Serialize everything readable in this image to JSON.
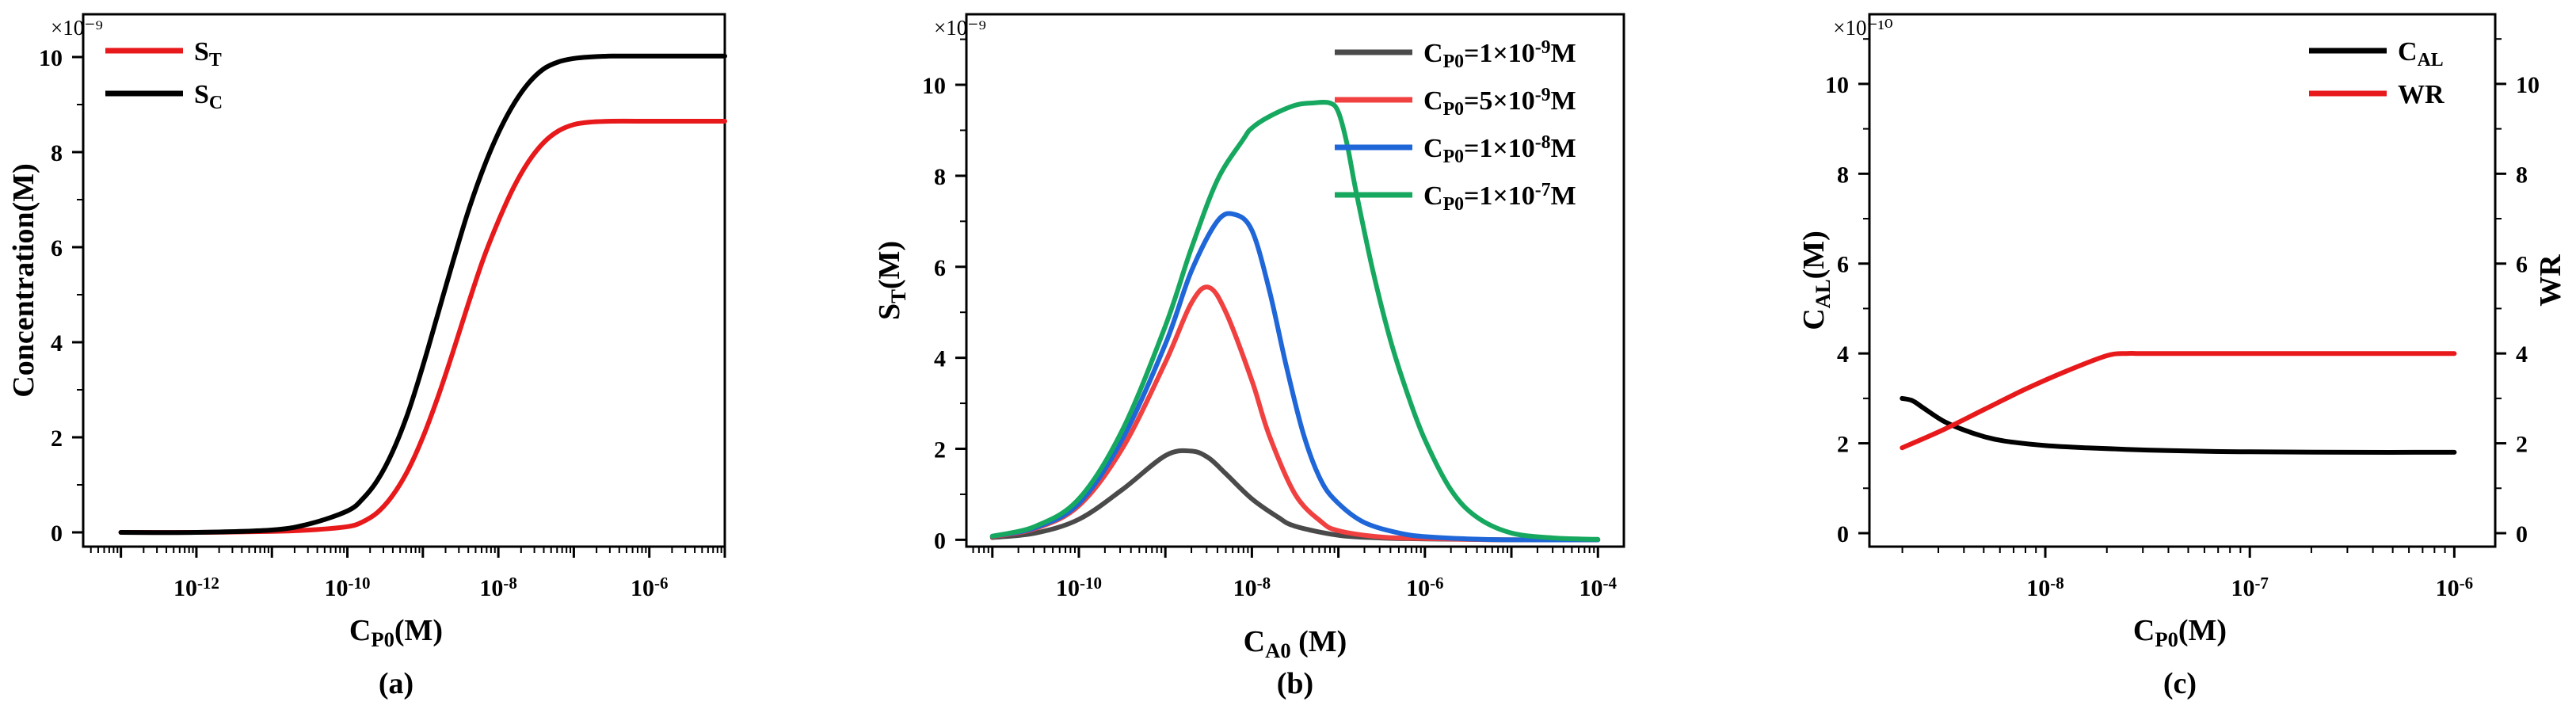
{
  "chart_data": [
    {
      "id": "a",
      "type": "line",
      "caption": "(a)",
      "xscale": "log",
      "xlim_log10": [
        -13.5,
        -5
      ],
      "ylim": [
        -0.3,
        10.9
      ],
      "multiplier": "×10⁻⁹",
      "xlabel": {
        "main": "C",
        "sub": "P0",
        "rest": "(M)"
      },
      "ylabel": {
        "main": "Concentration(M)",
        "sub": "",
        "rest": ""
      },
      "xticks": [
        {
          "exp": -12,
          "label": "10",
          "sup": "-12"
        },
        {
          "exp": -10,
          "label": "10",
          "sup": "-10"
        },
        {
          "exp": -8,
          "label": "10",
          "sup": "-8"
        },
        {
          "exp": -6,
          "label": "10",
          "sup": "-6"
        }
      ],
      "yticks": [
        0,
        2,
        4,
        6,
        8,
        10
      ],
      "legend_position": "top-left",
      "series": [
        {
          "name": "S",
          "sub": "T",
          "color": "#e8191b",
          "log_x": [
            -13,
            -12,
            -11,
            -10.5,
            -10,
            -9.8,
            -9.6,
            -9.4,
            -9.2,
            -9,
            -8.8,
            -8.6,
            -8.4,
            -8.2,
            -8,
            -7.8,
            -7.6,
            -7.4,
            -7.2,
            -7,
            -6.8,
            -6.5,
            -6,
            -5.5,
            -5
          ],
          "y": [
            0,
            0,
            0.02,
            0.05,
            0.12,
            0.22,
            0.42,
            0.78,
            1.3,
            2.0,
            2.85,
            3.8,
            4.8,
            5.75,
            6.55,
            7.25,
            7.8,
            8.2,
            8.45,
            8.58,
            8.63,
            8.65,
            8.65,
            8.65,
            8.65
          ]
        },
        {
          "name": "S",
          "sub": "C",
          "color": "#000000",
          "log_x": [
            -13,
            -12,
            -11,
            -10.5,
            -10,
            -9.8,
            -9.6,
            -9.4,
            -9.2,
            -9,
            -8.8,
            -8.6,
            -8.4,
            -8.2,
            -8,
            -7.8,
            -7.6,
            -7.4,
            -7.2,
            -7,
            -6.8,
            -6.5,
            -6,
            -5.5,
            -5
          ],
          "y": [
            0,
            0,
            0.05,
            0.18,
            0.45,
            0.7,
            1.1,
            1.7,
            2.5,
            3.5,
            4.6,
            5.7,
            6.75,
            7.65,
            8.4,
            9.0,
            9.45,
            9.75,
            9.9,
            9.97,
            10.0,
            10.02,
            10.02,
            10.02,
            10.02
          ]
        }
      ]
    },
    {
      "id": "b",
      "type": "line",
      "caption": "(b)",
      "xscale": "log",
      "xlim_log10": [
        -11.3,
        -3.7
      ],
      "ylim": [
        -0.15,
        11.55
      ],
      "multiplier": "×10⁻⁹",
      "xlabel": {
        "main": "C",
        "sub": "A0",
        "rest": " (M)"
      },
      "ylabel": {
        "main": "S",
        "sub": "T",
        "rest": "(M)"
      },
      "xticks": [
        {
          "exp": -10,
          "label": "10",
          "sup": "-10"
        },
        {
          "exp": -8,
          "label": "10",
          "sup": "-8"
        },
        {
          "exp": -6,
          "label": "10",
          "sup": "-6"
        },
        {
          "exp": -4,
          "label": "10",
          "sup": "-4"
        }
      ],
      "yticks": [
        0,
        2,
        4,
        6,
        8,
        10
      ],
      "legend_position": "top-right",
      "series": [
        {
          "name": "C",
          "sub": "P0",
          "rest": "=1×10",
          "sup": "-9",
          "unit": "M",
          "color": "#4a4a4a",
          "log_x": [
            -11,
            -10.5,
            -10,
            -9.5,
            -9,
            -8.7,
            -8.5,
            -8.3,
            -8,
            -7.7,
            -7.5,
            -7,
            -6.5,
            -6,
            -5.5,
            -5,
            -4
          ],
          "y": [
            0.05,
            0.15,
            0.45,
            1.1,
            1.85,
            1.95,
            1.8,
            1.45,
            0.9,
            0.5,
            0.3,
            0.1,
            0.04,
            0.02,
            0.01,
            0,
            0
          ]
        },
        {
          "name": "C",
          "sub": "P0",
          "rest": "=5×10",
          "sup": "-9",
          "unit": "M",
          "color": "#f04040",
          "log_x": [
            -11,
            -10.5,
            -10,
            -9.5,
            -9,
            -8.7,
            -8.5,
            -8.3,
            -8,
            -7.8,
            -7.5,
            -7.2,
            -7,
            -6.5,
            -6,
            -5.5,
            -5,
            -4
          ],
          "y": [
            0.07,
            0.25,
            0.75,
            2.0,
            3.9,
            5.2,
            5.55,
            5.0,
            3.5,
            2.3,
            1.0,
            0.4,
            0.2,
            0.06,
            0.03,
            0.01,
            0,
            0
          ]
        },
        {
          "name": "C",
          "sub": "P0",
          "rest": "=1×10",
          "sup": "-8",
          "unit": "M",
          "color": "#1f66d8",
          "log_x": [
            -11,
            -10.5,
            -10,
            -9.5,
            -9,
            -8.7,
            -8.4,
            -8.2,
            -8,
            -7.8,
            -7.6,
            -7.4,
            -7.2,
            -7,
            -6.7,
            -6.3,
            -6,
            -5.5,
            -5,
            -4
          ],
          "y": [
            0.08,
            0.27,
            0.8,
            2.2,
            4.3,
            5.9,
            7.0,
            7.15,
            6.8,
            5.5,
            3.8,
            2.3,
            1.3,
            0.8,
            0.38,
            0.15,
            0.07,
            0.02,
            0,
            0
          ]
        },
        {
          "name": "C",
          "sub": "P0",
          "rest": "=1×10",
          "sup": "-7",
          "unit": "M",
          "color": "#17a860",
          "log_x": [
            -11,
            -10.5,
            -10,
            -9.5,
            -9,
            -8.7,
            -8.4,
            -8.1,
            -8,
            -7.8,
            -7.5,
            -7.3,
            -7.1,
            -7,
            -6.9,
            -6.8,
            -6.6,
            -6.4,
            -6.2,
            -6,
            -5.7,
            -5.4,
            -5,
            -4.5,
            -4
          ],
          "y": [
            0.08,
            0.3,
            0.9,
            2.4,
            4.7,
            6.4,
            7.9,
            8.8,
            9.05,
            9.3,
            9.55,
            9.6,
            9.6,
            9.4,
            8.7,
            7.7,
            5.9,
            4.4,
            3.2,
            2.2,
            1.1,
            0.5,
            0.15,
            0.04,
            0.01
          ]
        }
      ]
    },
    {
      "id": "c",
      "type": "line",
      "caption": "(c)",
      "xscale": "log",
      "xlim_log10": [
        -8.86,
        -5.8
      ],
      "ylim": [
        -0.3,
        11.55
      ],
      "y2lim": [
        -0.3,
        11.55
      ],
      "multiplier": "×10⁻¹⁰",
      "xlabel": {
        "main": "C",
        "sub": "P0",
        "rest": "(M)"
      },
      "ylabel": {
        "main": "C",
        "sub": "AL",
        "rest": "(M)"
      },
      "y2label": "WR",
      "xticks": [
        {
          "exp": -8,
          "label": "10",
          "sup": "-8"
        },
        {
          "exp": -7,
          "label": "10",
          "sup": "-7"
        },
        {
          "exp": -6,
          "label": "10",
          "sup": "-6"
        }
      ],
      "yticks": [
        0,
        2,
        4,
        6,
        8,
        10
      ],
      "y2ticks": [
        0,
        2,
        4,
        6,
        8,
        10
      ],
      "legend_position": "top-right",
      "series": [
        {
          "name": "C",
          "sub": "AL",
          "color": "#000000",
          "axis": "left",
          "log_x": [
            -8.7,
            -8.65,
            -8.6,
            -8.5,
            -8.4,
            -8.3,
            -8.2,
            -8,
            -7.8,
            -7.5,
            -7.2,
            -7,
            -6.5,
            -6
          ],
          "y": [
            3.0,
            2.95,
            2.8,
            2.5,
            2.3,
            2.15,
            2.05,
            1.95,
            1.9,
            1.85,
            1.82,
            1.81,
            1.8,
            1.8
          ]
        },
        {
          "name": "WR",
          "sub": "",
          "color": "#e8191b",
          "axis": "right",
          "log_x": [
            -8.7,
            -8.5,
            -8.3,
            -8.1,
            -7.9,
            -7.7,
            -7.6,
            -7.55,
            -7.5,
            -7.2,
            -7,
            -6.5,
            -6
          ],
          "y": [
            1.9,
            2.3,
            2.75,
            3.2,
            3.6,
            3.95,
            4.0,
            4.0,
            4.0,
            4.0,
            4.0,
            4.0,
            4.0
          ]
        }
      ]
    }
  ]
}
